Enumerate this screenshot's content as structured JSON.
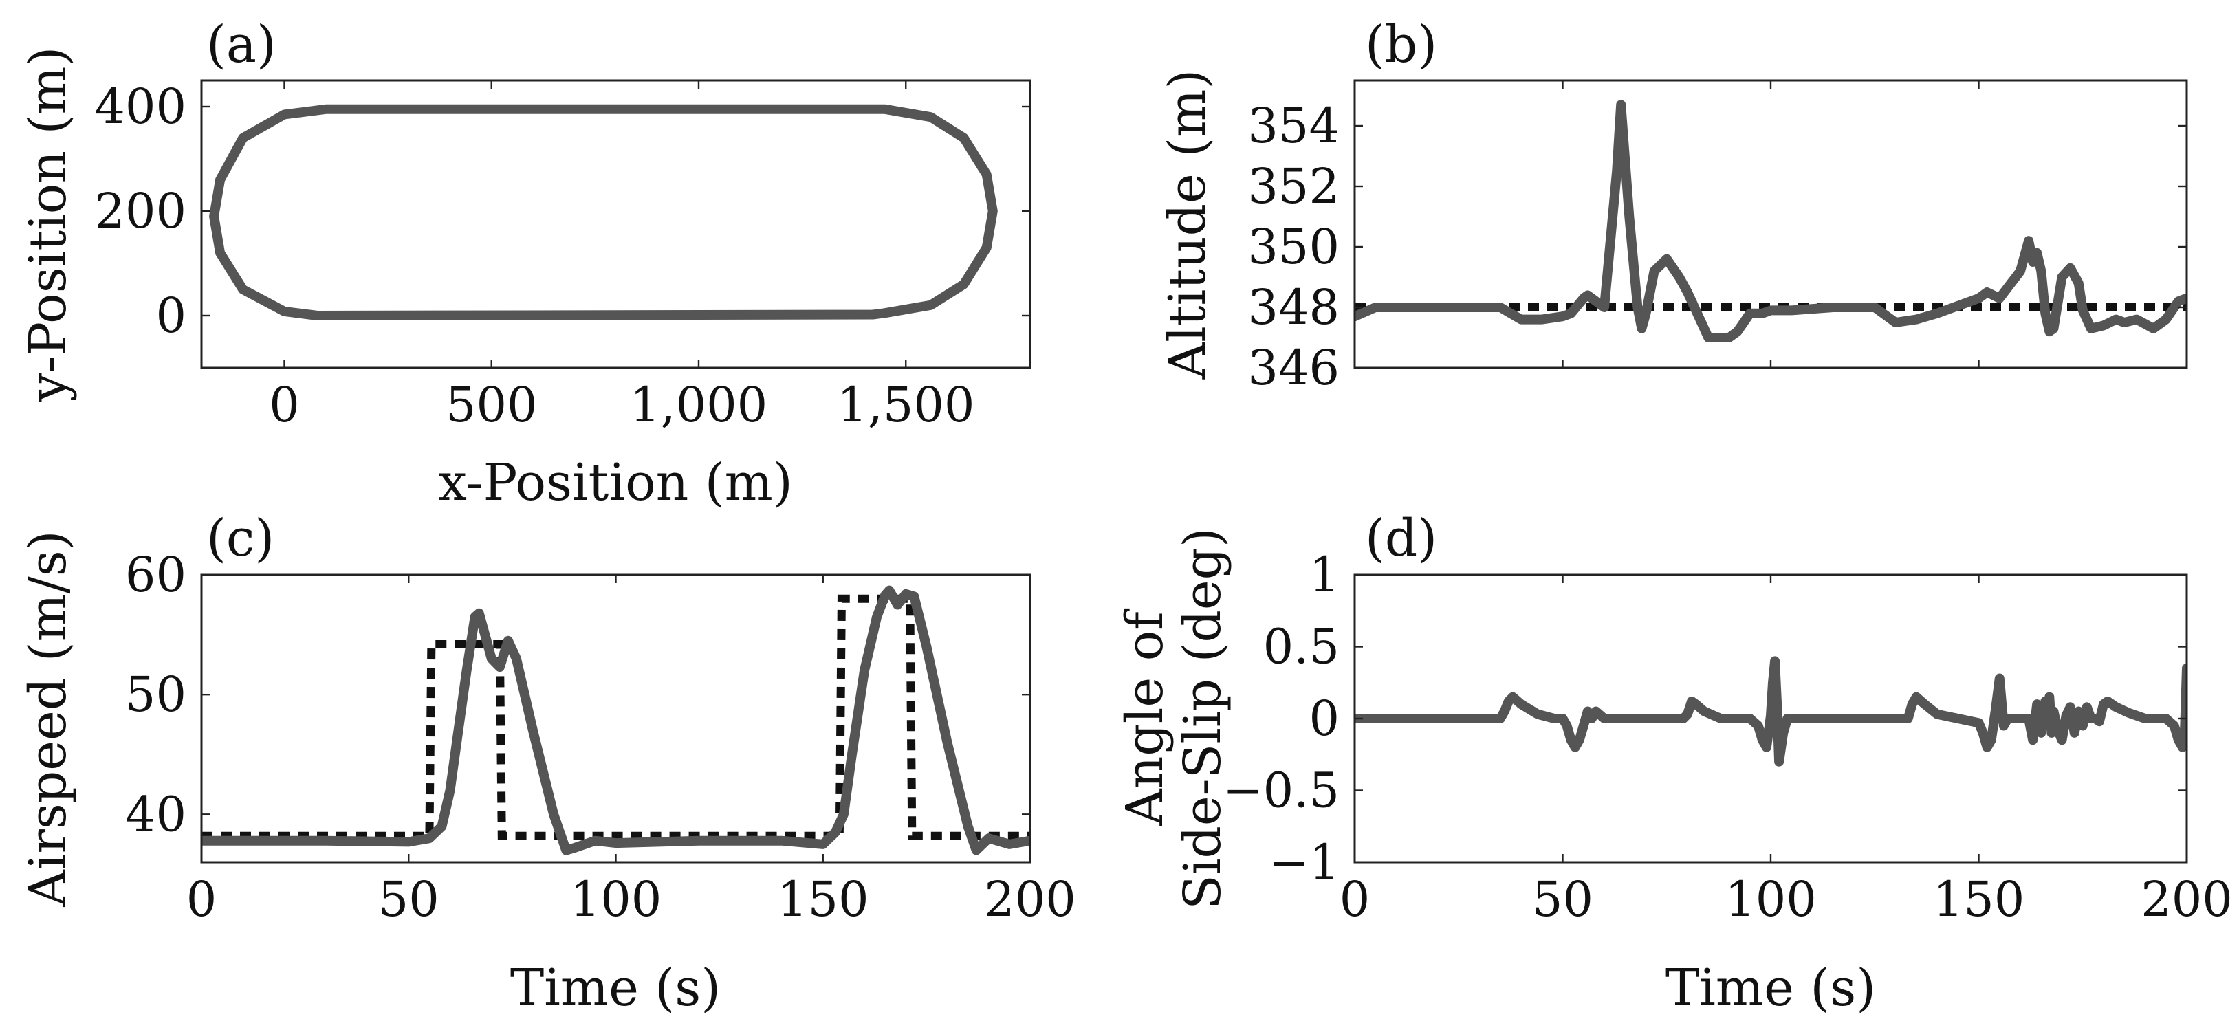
{
  "colors": {
    "actual": "#555555",
    "reference": "#111111",
    "frame": "#222222"
  },
  "chart_data": [
    {
      "type": "line",
      "panel_label": "(a)",
      "xlabel": "x-Position (m)",
      "ylabel": "y-Position (m)",
      "xlim": [
        -200,
        1800
      ],
      "ylim": [
        -100,
        450
      ],
      "xticks": [
        0,
        500,
        1000,
        1500
      ],
      "xtick_labels": [
        "0",
        "500",
        "1,000",
        "1,500"
      ],
      "yticks": [
        0,
        200,
        400
      ],
      "ytick_labels": [
        "0",
        "200",
        "400"
      ],
      "series": [
        {
          "name": "trajectory",
          "style": "actual",
          "closed": true,
          "x": [
            100,
            1450,
            1560,
            1640,
            1695,
            1710,
            1695,
            1640,
            1560,
            1450,
            1420,
            80,
            0,
            -100,
            -155,
            -170,
            -155,
            -100,
            0,
            100
          ],
          "y": [
            395,
            395,
            380,
            340,
            270,
            200,
            130,
            60,
            20,
            5,
            2,
            0,
            8,
            50,
            120,
            190,
            260,
            340,
            385,
            395
          ]
        }
      ]
    },
    {
      "type": "line",
      "panel_label": "(b)",
      "xlabel": "",
      "ylabel": "Altitude (m)",
      "xlim": [
        0,
        200
      ],
      "ylim": [
        346,
        355.5
      ],
      "xticks": [
        0,
        50,
        100,
        150,
        200
      ],
      "xtick_labels": [],
      "yticks": [
        346,
        348,
        350,
        352,
        354
      ],
      "ytick_labels": [
        "346",
        "348",
        "350",
        "352",
        "354"
      ],
      "series": [
        {
          "name": "reference",
          "style": "ref",
          "x": [
            0,
            200
          ],
          "y": [
            348,
            348
          ]
        },
        {
          "name": "altitude",
          "style": "actual",
          "x": [
            0,
            5,
            15,
            25,
            35,
            40,
            45,
            50,
            52,
            55,
            56,
            60,
            63,
            64,
            66,
            68,
            69,
            70,
            72,
            75,
            78,
            80,
            85,
            90,
            92,
            95,
            98,
            100,
            105,
            115,
            125,
            130,
            135,
            140,
            150,
            152,
            155,
            160,
            162,
            163,
            164,
            165,
            166,
            167,
            168,
            170,
            172,
            174,
            175,
            177,
            180,
            183,
            185,
            188,
            192,
            195,
            198,
            200
          ],
          "y": [
            347.7,
            348.0,
            348.0,
            348.0,
            348.0,
            347.6,
            347.6,
            347.7,
            347.8,
            348.3,
            348.4,
            348.0,
            352.5,
            354.7,
            351.0,
            348.0,
            347.3,
            347.8,
            349.2,
            349.6,
            349.0,
            348.5,
            347.0,
            347.0,
            347.2,
            347.8,
            347.8,
            347.9,
            347.9,
            348.0,
            348.0,
            347.5,
            347.6,
            347.8,
            348.3,
            348.5,
            348.3,
            349.2,
            350.2,
            349.5,
            349.8,
            349.2,
            347.8,
            347.2,
            347.3,
            349.0,
            349.3,
            348.8,
            347.9,
            347.3,
            347.4,
            347.6,
            347.5,
            347.6,
            347.3,
            347.6,
            348.2,
            348.3
          ]
        }
      ]
    },
    {
      "type": "line",
      "panel_label": "(c)",
      "xlabel": "Time (s)",
      "ylabel": "Airspeed (m/s)",
      "xlim": [
        0,
        200
      ],
      "ylim": [
        36,
        60
      ],
      "xticks": [
        0,
        50,
        100,
        150,
        200
      ],
      "xtick_labels": [
        "0",
        "50",
        "100",
        "150",
        "200"
      ],
      "yticks": [
        40,
        50,
        60
      ],
      "ytick_labels": [
        "40",
        "50",
        "60"
      ],
      "series": [
        {
          "name": "reference",
          "style": "ref",
          "x": [
            0,
            55,
            55.5,
            72,
            72.5,
            154,
            154.5,
            171,
            171.5,
            200
          ],
          "y": [
            38.2,
            38.2,
            54.2,
            54.2,
            38.2,
            38.2,
            58.0,
            58.0,
            38.2,
            38.2
          ]
        },
        {
          "name": "airspeed",
          "style": "actual",
          "x": [
            0,
            10,
            30,
            50,
            55,
            58,
            60,
            62,
            64,
            66,
            67,
            70,
            72,
            74,
            76,
            80,
            85,
            88,
            90,
            95,
            100,
            120,
            140,
            150,
            153,
            155,
            157,
            160,
            163,
            165,
            166,
            168,
            170,
            172,
            175,
            180,
            185,
            187,
            190,
            195,
            200
          ],
          "y": [
            37.8,
            37.8,
            37.8,
            37.7,
            38.0,
            39.0,
            42.0,
            47.0,
            52.0,
            56.5,
            56.8,
            53.0,
            52.3,
            54.5,
            53.0,
            47.0,
            40.0,
            37.0,
            37.2,
            37.8,
            37.6,
            37.8,
            37.8,
            37.5,
            38.5,
            40.0,
            45.0,
            52.0,
            56.5,
            58.3,
            58.7,
            57.5,
            58.4,
            58.2,
            54.0,
            46.0,
            39.0,
            37.0,
            38.0,
            37.5,
            37.8
          ]
        }
      ]
    },
    {
      "type": "line",
      "panel_label": "(d)",
      "xlabel": "Time (s)",
      "ylabel": "Angle of Side-Slip (deg)",
      "ylabel_lines": [
        "Angle of",
        "Side-Slip (deg)"
      ],
      "xlim": [
        0,
        200
      ],
      "ylim": [
        -1,
        1
      ],
      "xticks": [
        0,
        50,
        100,
        150,
        200
      ],
      "xtick_labels": [
        "0",
        "50",
        "100",
        "150",
        "200"
      ],
      "yticks": [
        -1,
        -0.5,
        0,
        0.5,
        1
      ],
      "ytick_labels": [
        "−1",
        "−0.5",
        "0",
        "0.5",
        "1"
      ],
      "series": [
        {
          "name": "side-slip",
          "style": "actual",
          "x": [
            0,
            35,
            36,
            37,
            38,
            40,
            44,
            48,
            50,
            51,
            52,
            53,
            54,
            55,
            56,
            57,
            58,
            60,
            65,
            79,
            80,
            81,
            82,
            84,
            88,
            92,
            95,
            97,
            98,
            99,
            100,
            100.5,
            101,
            101.5,
            102,
            103,
            104,
            110,
            130,
            133,
            134,
            135,
            137,
            140,
            145,
            150,
            151,
            152,
            153,
            154,
            155,
            156,
            157,
            158,
            160,
            162,
            163,
            164,
            165,
            166,
            166.5,
            167,
            167.5,
            168,
            169,
            170,
            171,
            172,
            173,
            174,
            175,
            176,
            177,
            178,
            179,
            180,
            181,
            183,
            186,
            190,
            193,
            195,
            197,
            198,
            199,
            199.5,
            200
          ],
          "y": [
            0,
            0,
            0.05,
            0.12,
            0.15,
            0.1,
            0.03,
            0.0,
            0.0,
            -0.05,
            -0.15,
            -0.2,
            -0.15,
            -0.05,
            0.05,
            0.0,
            0.05,
            0.0,
            0.0,
            0.0,
            0.03,
            0.12,
            0.1,
            0.05,
            0.0,
            0.0,
            0.0,
            -0.05,
            -0.15,
            -0.2,
            0.02,
            0.25,
            0.4,
            0.1,
            -0.3,
            -0.1,
            0.0,
            0.0,
            0.0,
            0.0,
            0.1,
            0.15,
            0.1,
            0.03,
            0.0,
            -0.03,
            -0.1,
            -0.2,
            -0.15,
            0.05,
            0.28,
            -0.05,
            0.0,
            0.0,
            0.0,
            0.0,
            -0.15,
            0.1,
            -0.1,
            0.12,
            -0.05,
            0.15,
            -0.1,
            0.05,
            -0.08,
            -0.15,
            0.02,
            0.08,
            -0.1,
            0.05,
            -0.05,
            0.08,
            0.0,
            0.0,
            -0.02,
            0.1,
            0.12,
            0.08,
            0.04,
            0.0,
            0.0,
            0.0,
            -0.05,
            -0.15,
            -0.2,
            -0.1,
            0.35
          ]
        }
      ]
    }
  ]
}
